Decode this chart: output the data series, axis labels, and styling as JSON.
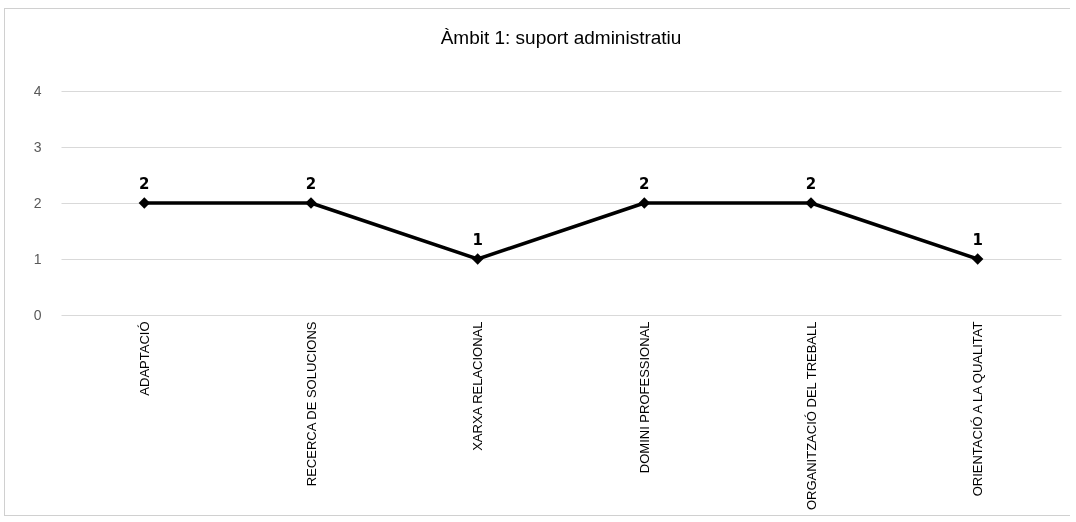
{
  "chart_data": {
    "type": "line",
    "title": "Àmbit 1: suport administratiu",
    "categories": [
      "ADAPTACIÓ",
      "RECERCA DE SOLUCIONS",
      "XARXA RELACIONAL",
      "DOMINI PROFESSIONAL",
      "ORGANITZACIÓ DEL TREBALL",
      "ORIENTACIÓ A LA QUALITAT"
    ],
    "series": [
      {
        "color": "#000000",
        "values": [
          2,
          2,
          1,
          2,
          2,
          1
        ]
      }
    ],
    "ylim": [
      0,
      4
    ],
    "yticks": [
      0,
      1,
      2,
      3,
      4
    ],
    "grid": "y",
    "marker": "diamond",
    "line_style": "solid",
    "data_labels": true
  }
}
